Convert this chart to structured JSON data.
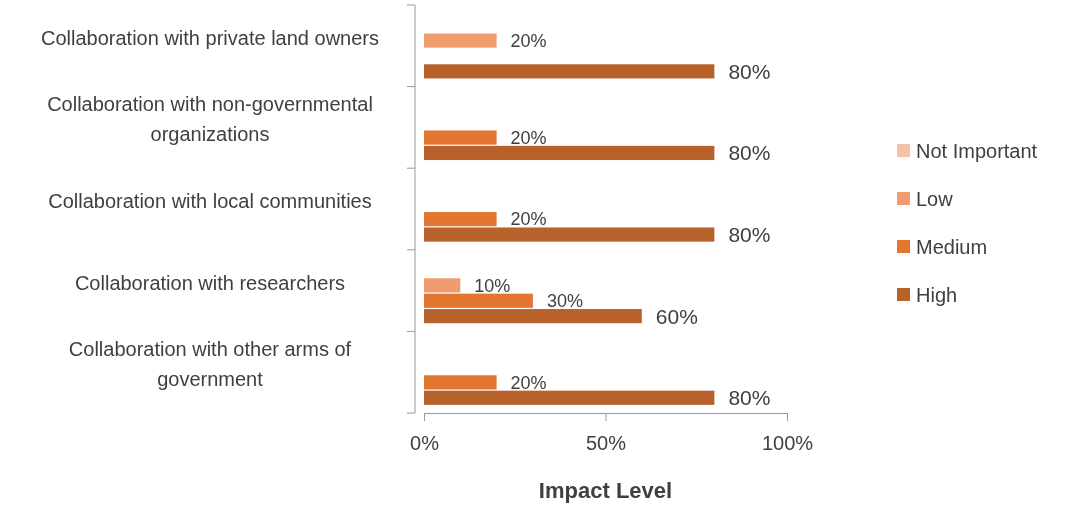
{
  "chart_data": {
    "type": "bar",
    "orientation": "horizontal",
    "xlabel": "Impact Level",
    "categories": [
      "Collaboration with private land owners",
      "Collaboration with non-governmental organizations",
      "Collaboration with local communities",
      "Collaboration with researchers",
      "Collaboration with other arms of government"
    ],
    "series": [
      {
        "name": "Not Important",
        "color": "#f5c1a9",
        "values": [
          null,
          null,
          null,
          null,
          null
        ],
        "value_labels": [
          null,
          null,
          null,
          null,
          null
        ]
      },
      {
        "name": "Low",
        "color": "#f09c6e",
        "values": [
          20,
          null,
          null,
          10,
          null
        ],
        "value_labels": [
          "20%",
          null,
          null,
          "10%",
          null
        ]
      },
      {
        "name": "Medium",
        "color": "#e2752f",
        "values": [
          null,
          20,
          20,
          30,
          20
        ],
        "value_labels": [
          null,
          "20%",
          "20%",
          "30%",
          "20%"
        ]
      },
      {
        "name": "High",
        "color": "#b8612a",
        "values": [
          80,
          80,
          80,
          60,
          80
        ],
        "value_labels": [
          "80%",
          "80%",
          "80%",
          "60%",
          "80%"
        ]
      }
    ],
    "xlim": [
      0,
      100
    ],
    "xticks": [
      {
        "value": 0,
        "label": "0%"
      },
      {
        "value": 50,
        "label": "50%"
      },
      {
        "value": 100,
        "label": "100%"
      }
    ],
    "legend": "right",
    "grid": false
  }
}
